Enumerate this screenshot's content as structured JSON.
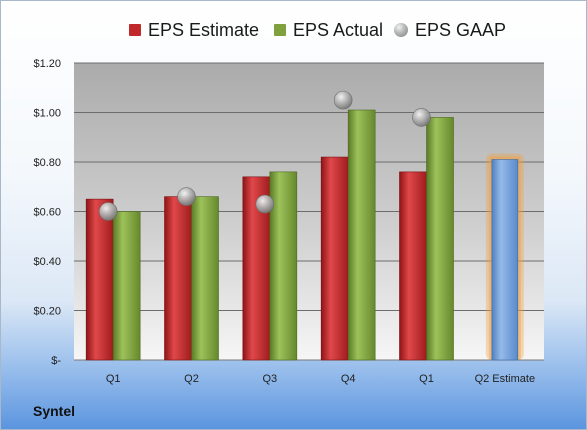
{
  "legend": {
    "estimate": "EPS Estimate",
    "actual": "EPS Actual",
    "gaap": "EPS GAAP"
  },
  "company": "Syntel",
  "colors": {
    "estimate": "#c0282a",
    "actual": "#7ea03d",
    "gaap": "#a6a6a6",
    "forecast": "#6f9fd6",
    "forecast_glow": "#f0a040"
  },
  "chart_data": {
    "type": "bar",
    "categories": [
      "Q1",
      "Q2",
      "Q3",
      "Q4",
      "Q1",
      "Q2 Estimate"
    ],
    "series": [
      {
        "name": "EPS Estimate",
        "values": [
          0.65,
          0.66,
          0.74,
          0.82,
          0.76,
          null
        ]
      },
      {
        "name": "EPS Actual",
        "values": [
          0.6,
          0.66,
          0.76,
          1.01,
          0.98,
          null
        ]
      },
      {
        "name": "EPS GAAP",
        "values": [
          0.6,
          0.66,
          0.63,
          1.05,
          0.98,
          null
        ]
      }
    ],
    "forecast": {
      "category": "Q2 Estimate",
      "value": 0.81
    },
    "ylim": [
      0,
      1.2
    ],
    "yticks": [
      0,
      0.2,
      0.4,
      0.6,
      0.8,
      1.0,
      1.2
    ],
    "ytick_labels": [
      "$-",
      "$0.20",
      "$0.40",
      "$0.60",
      "$0.80",
      "$1.00",
      "$1.20"
    ],
    "grid": true,
    "legend_position": "top"
  }
}
